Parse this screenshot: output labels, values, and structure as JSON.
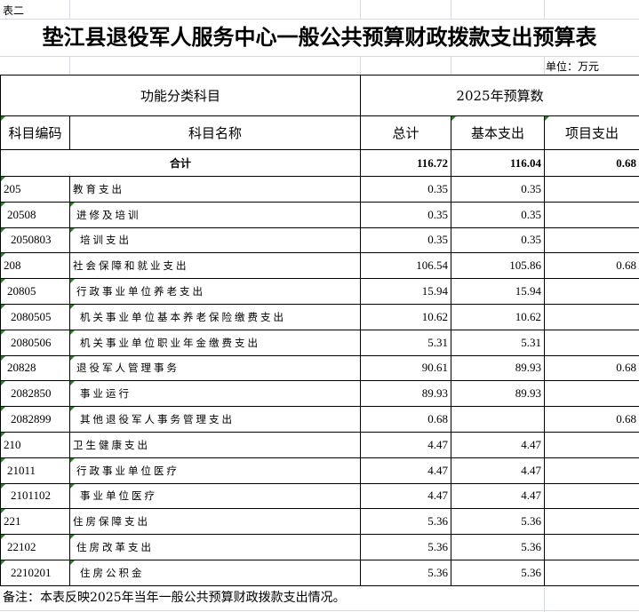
{
  "sheet_label": "表二",
  "title": "垫江县退役军人服务中心一般公共预算财政拨款支出预算表",
  "unit": "单位：万元",
  "header": {
    "group_left": "功能分类科目",
    "group_right": "2025年预算数",
    "code": "科目编码",
    "name": "科目名称",
    "total": "总计",
    "basic": "基本支出",
    "project": "项目支出"
  },
  "total_row": {
    "label": "合计",
    "total": "116.72",
    "basic": "116.04",
    "project": "0.68"
  },
  "rows": [
    {
      "code": "205",
      "name": "教育支出",
      "level": 1,
      "total": "0.35",
      "basic": "0.35",
      "project": ""
    },
    {
      "code": "20508",
      "name": "进修及培训",
      "level": 2,
      "total": "0.35",
      "basic": "0.35",
      "project": ""
    },
    {
      "code": "2050803",
      "name": "培训支出",
      "level": 3,
      "total": "0.35",
      "basic": "0.35",
      "project": ""
    },
    {
      "code": "208",
      "name": "社会保障和就业支出",
      "level": 1,
      "total": "106.54",
      "basic": "105.86",
      "project": "0.68"
    },
    {
      "code": "20805",
      "name": "行政事业单位养老支出",
      "level": 2,
      "total": "15.94",
      "basic": "15.94",
      "project": ""
    },
    {
      "code": "2080505",
      "name": "机关事业单位基本养老保险缴费支出",
      "level": 3,
      "total": "10.62",
      "basic": "10.62",
      "project": ""
    },
    {
      "code": "2080506",
      "name": "机关事业单位职业年金缴费支出",
      "level": 3,
      "total": "5.31",
      "basic": "5.31",
      "project": ""
    },
    {
      "code": "20828",
      "name": "退役军人管理事务",
      "level": 2,
      "total": "90.61",
      "basic": "89.93",
      "project": "0.68"
    },
    {
      "code": "2082850",
      "name": "事业运行",
      "level": 3,
      "total": "89.93",
      "basic": "89.93",
      "project": ""
    },
    {
      "code": "2082899",
      "name": "其他退役军人事务管理支出",
      "level": 3,
      "total": "0.68",
      "basic": "",
      "project": "0.68"
    },
    {
      "code": "210",
      "name": "卫生健康支出",
      "level": 1,
      "total": "4.47",
      "basic": "4.47",
      "project": ""
    },
    {
      "code": "21011",
      "name": "行政事业单位医疗",
      "level": 2,
      "total": "4.47",
      "basic": "4.47",
      "project": ""
    },
    {
      "code": "2101102",
      "name": "事业单位医疗",
      "level": 3,
      "total": "4.47",
      "basic": "4.47",
      "project": ""
    },
    {
      "code": "221",
      "name": "住房保障支出",
      "level": 1,
      "total": "5.36",
      "basic": "5.36",
      "project": ""
    },
    {
      "code": "22102",
      "name": "住房改革支出",
      "level": 2,
      "total": "5.36",
      "basic": "5.36",
      "project": ""
    },
    {
      "code": "2210201",
      "name": "住房公积金",
      "level": 3,
      "total": "5.36",
      "basic": "5.36",
      "project": ""
    }
  ],
  "footnote": "备注：本表反映2025年当年一般公共预算财政拨款支出情况。"
}
